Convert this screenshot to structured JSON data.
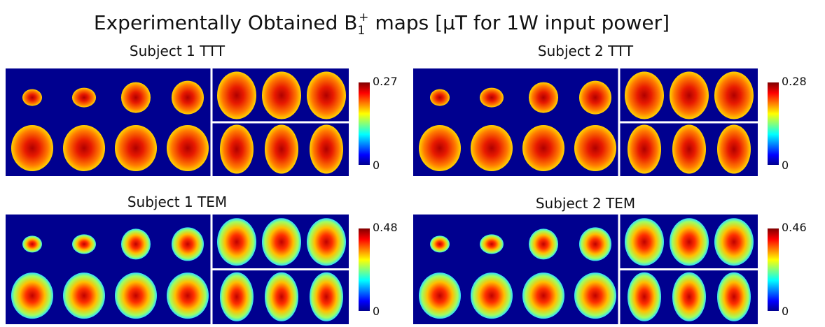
{
  "header": {
    "title": {
      "prefix": "Experimentally Obtained B",
      "sub": "1",
      "sup": "+",
      "suffix": " maps [μT for 1W input power]"
    }
  },
  "panels": [
    {
      "title": "Subject 1 TTT",
      "colorbar": {
        "max": "0.27",
        "min": "0"
      }
    },
    {
      "title": "Subject 2 TTT",
      "colorbar": {
        "max": "0.28",
        "min": "0"
      }
    },
    {
      "title": "Subject 1 TEM",
      "colorbar": {
        "max": "0.48",
        "min": "0"
      }
    },
    {
      "title": "Subject 2 TEM",
      "colorbar": {
        "max": "0.46",
        "min": "0"
      }
    }
  ]
}
